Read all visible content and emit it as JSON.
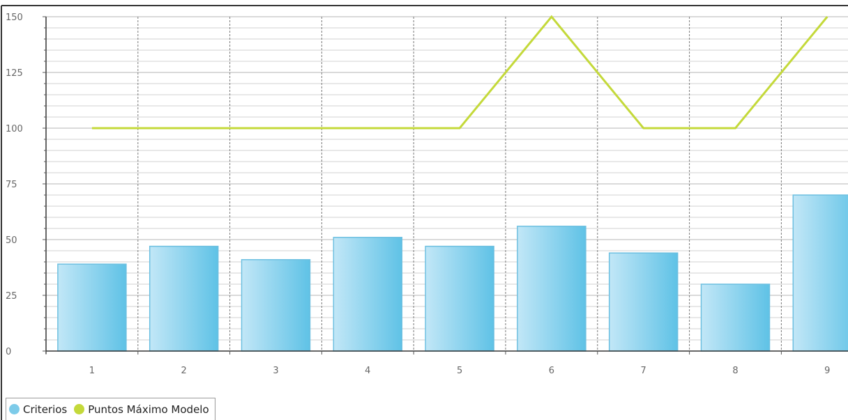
{
  "chart_data": {
    "type": "bar",
    "categories": [
      "1",
      "2",
      "3",
      "4",
      "5",
      "6",
      "7",
      "8",
      "9"
    ],
    "series": [
      {
        "name": "Criterios",
        "type": "bar",
        "values": [
          39,
          47,
          41,
          51,
          47,
          56,
          44,
          30,
          70
        ],
        "color": "#7dcbe9"
      },
      {
        "name": "Puntos Máximo Modelo",
        "type": "line",
        "values": [
          100,
          100,
          100,
          100,
          100,
          150,
          100,
          100,
          150
        ],
        "color": "#c4d93a"
      }
    ],
    "y_ticks": [
      "0",
      "25",
      "50",
      "75",
      "100",
      "125",
      "150"
    ],
    "ylim": [
      0,
      150
    ],
    "grid": true,
    "legend_position": "bottom-left"
  }
}
